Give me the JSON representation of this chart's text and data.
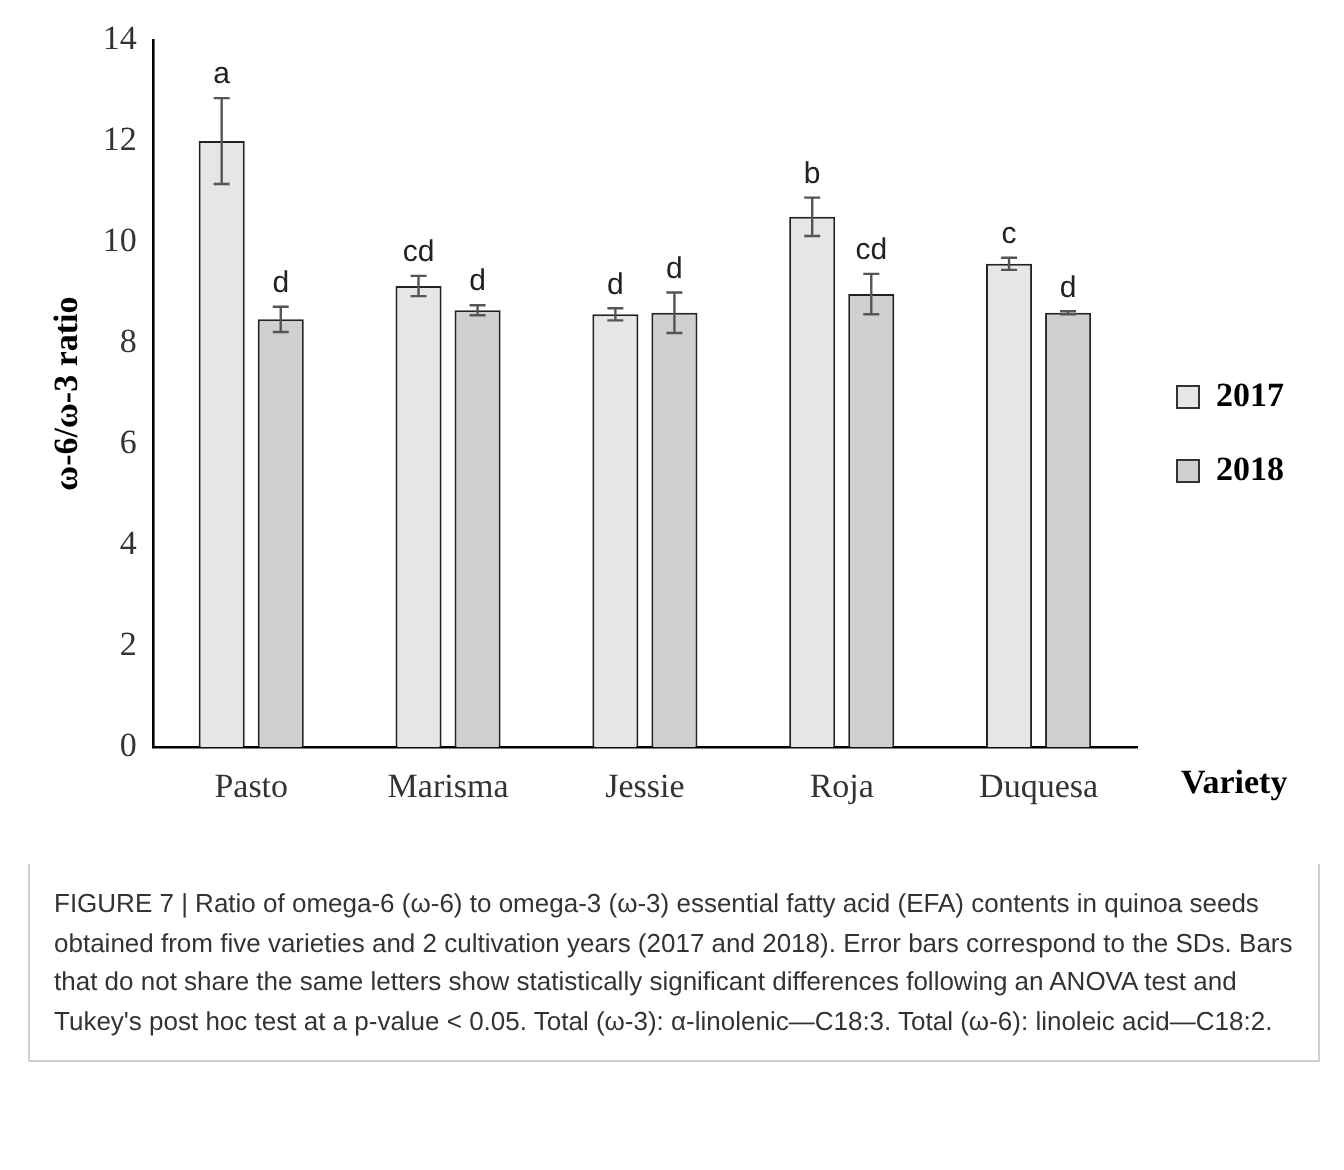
{
  "chart_data": {
    "type": "bar",
    "xlabel": "Variety",
    "ylabel": "ω-6/ω-3 ratio",
    "categories": [
      "Pasto",
      "Marisma",
      "Jessie",
      "Roja",
      "Duquesa"
    ],
    "series": [
      {
        "name": "2017",
        "color": "#e6e6e6",
        "values": [
          12.0,
          9.13,
          8.57,
          10.5,
          9.57
        ],
        "errors": [
          0.85,
          0.2,
          0.12,
          0.38,
          0.12
        ],
        "value_labels": [
          "a",
          "cd",
          "d",
          "b",
          "c"
        ]
      },
      {
        "name": "2018",
        "color": "#d0d0d0",
        "values": [
          8.47,
          8.65,
          8.6,
          8.97,
          8.6
        ],
        "errors": [
          0.25,
          0.1,
          0.4,
          0.4,
          0.03
        ],
        "value_labels": [
          "d",
          "d",
          "d",
          "cd",
          "d"
        ]
      }
    ],
    "ylim": [
      0,
      14
    ],
    "yticks": [
      0,
      2,
      4,
      6,
      8,
      10,
      12,
      14
    ],
    "grid": false,
    "legend": "right",
    "annotations": [
      "FIGURE 7 | Ratio of omega-6 (ω-6) to omega-3 (ω-3) essential fatty acid (EFA) contents in quinoa seeds obtained from five varieties and 2 cultivation years (2017 and 2018). Error bars correspond to the SDs. Bars that do not share the same letters show statistically significant differences following an ANOVA test and Tukey's post hoc test at a p-value < 0.05. Total (ω-3): α-linolenic—C18:3. Total (ω-6): linoleic acid—C18:2."
    ]
  }
}
